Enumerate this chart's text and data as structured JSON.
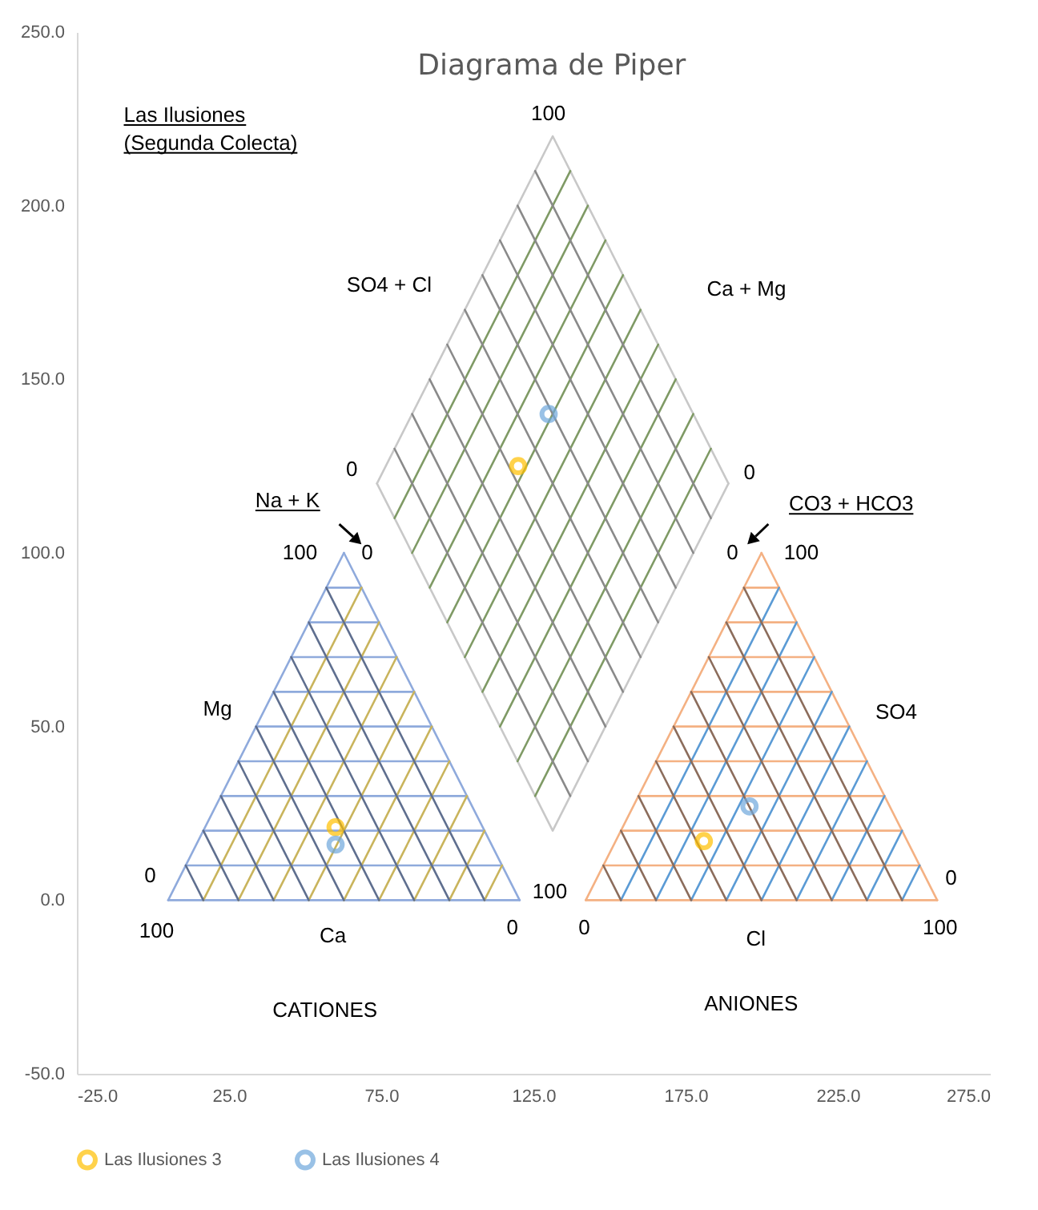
{
  "chart_data": {
    "type": "scatter",
    "title": "Diagrama de Piper",
    "xlim": [
      -25,
      275
    ],
    "xticks": [
      {
        "value": -25,
        "label": "-25.0"
      },
      {
        "value": 25,
        "label": "25.0"
      },
      {
        "value": 75,
        "label": "75.0"
      },
      {
        "value": 125,
        "label": "125.0"
      },
      {
        "value": 175,
        "label": "175.0"
      },
      {
        "value": 225,
        "label": "225.0"
      },
      {
        "value": 275,
        "label": "275.0"
      }
    ],
    "ylim": [
      -50,
      250
    ],
    "yticks": [
      {
        "value": -50,
        "label": "-50.0"
      },
      {
        "value": 0,
        "label": "0.0"
      },
      {
        "value": 50,
        "label": "50.0"
      },
      {
        "value": 100,
        "label": "100.0"
      },
      {
        "value": 150,
        "label": "150.0"
      },
      {
        "value": 200,
        "label": "200.0"
      },
      {
        "value": 250,
        "label": "250.0"
      }
    ],
    "grid": false,
    "legend": "bottom",
    "annotations": [
      "Las Ilusiones",
      "(Segunda Colecta)",
      "100",
      "SO4 + Cl",
      "Ca + Mg",
      "0",
      "0",
      "Na + K",
      "CO3 + HCO3",
      "100",
      "0",
      "0",
      "100",
      "Mg",
      "SO4",
      "0",
      "100",
      "Ca",
      "0",
      "100",
      "0",
      "Cl",
      "100",
      "0",
      "CATIONES",
      "ANIONES"
    ],
    "series": [
      {
        "type": "line",
        "color": "#8faadc",
        "x": [
          5,
          120.47,
          null,
          5,
          62.74,
          null,
          62.74,
          120.47,
          null,
          10.77,
          114.7,
          null,
          16.55,
          108.92,
          null,
          22.32,
          103.15,
          null,
          28.09,
          97.38,
          null,
          33.87,
          91.6,
          null,
          39.64,
          85.83,
          null,
          45.42,
          80.05,
          null,
          51.19,
          74.28,
          null,
          56.96,
          68.51
        ],
        "values": [
          0,
          0,
          null,
          0,
          100,
          null,
          100,
          0,
          null,
          10,
          10,
          null,
          20,
          20,
          null,
          30,
          30,
          null,
          40,
          40,
          null,
          50,
          50,
          null,
          60,
          60,
          null,
          70,
          70,
          null,
          80,
          80,
          null,
          90,
          90
        ]
      },
      {
        "type": "line",
        "color": "#c9b45c",
        "x": [
          16.55,
          68.51,
          null,
          28.09,
          74.28,
          null,
          39.64,
          80.05,
          null,
          51.19,
          85.83,
          null,
          62.74,
          91.6,
          null,
          74.28,
          97.38,
          null,
          85.83,
          103.15,
          null,
          97.38,
          108.92,
          null,
          108.92,
          114.7
        ],
        "values": [
          0,
          90,
          null,
          0,
          80,
          null,
          0,
          70,
          null,
          0,
          60,
          null,
          0,
          50,
          null,
          0,
          40,
          null,
          0,
          30,
          null,
          0,
          20,
          null,
          0,
          10
        ]
      },
      {
        "type": "line",
        "color": "#5f6f8f",
        "x": [
          16.55,
          10.77,
          null,
          28.09,
          16.55,
          null,
          39.64,
          22.32,
          null,
          51.19,
          28.09,
          null,
          62.74,
          33.87,
          null,
          74.28,
          39.64,
          null,
          85.83,
          45.42,
          null,
          97.38,
          51.19,
          null,
          108.92,
          56.96
        ],
        "values": [
          0,
          10,
          null,
          0,
          20,
          null,
          0,
          30,
          null,
          0,
          40,
          null,
          0,
          50,
          null,
          0,
          60,
          null,
          0,
          70,
          null,
          0,
          80,
          null,
          0,
          90
        ]
      },
      {
        "type": "line",
        "color": "#f4b183",
        "x": [
          142.2,
          257.67,
          null,
          142.2,
          199.94,
          null,
          199.94,
          257.67,
          null,
          147.97,
          251.9,
          null,
          153.75,
          246.12,
          null,
          159.52,
          240.35,
          null,
          165.29,
          234.58,
          null,
          171.07,
          228.8,
          null,
          176.84,
          223.03,
          null,
          182.62,
          217.25,
          null,
          188.39,
          211.48,
          null,
          194.16,
          205.71
        ],
        "values": [
          0,
          0,
          null,
          0,
          100,
          null,
          100,
          0,
          null,
          10,
          10,
          null,
          20,
          20,
          null,
          30,
          30,
          null,
          40,
          40,
          null,
          50,
          50,
          null,
          60,
          60,
          null,
          70,
          70,
          null,
          80,
          80,
          null,
          90,
          90
        ]
      },
      {
        "type": "line",
        "color": "#5b9bd5",
        "x": [
          153.75,
          205.71,
          null,
          165.29,
          211.48,
          null,
          176.84,
          217.25,
          null,
          188.39,
          223.03,
          null,
          199.94,
          228.8,
          null,
          211.48,
          234.58,
          null,
          223.03,
          240.35,
          null,
          234.58,
          246.12,
          null,
          246.12,
          251.9
        ],
        "values": [
          0,
          90,
          null,
          0,
          80,
          null,
          0,
          70,
          null,
          0,
          60,
          null,
          0,
          50,
          null,
          0,
          40,
          null,
          0,
          30,
          null,
          0,
          20,
          null,
          0,
          10
        ]
      },
      {
        "type": "line",
        "color": "#8c6d5c",
        "x": [
          153.75,
          147.97,
          null,
          165.29,
          153.75,
          null,
          176.84,
          159.52,
          null,
          188.39,
          165.29,
          null,
          199.94,
          171.07,
          null,
          211.48,
          176.84,
          null,
          223.03,
          182.62,
          null,
          234.58,
          188.39,
          null,
          246.12,
          194.16
        ],
        "values": [
          0,
          10,
          null,
          0,
          20,
          null,
          0,
          30,
          null,
          0,
          40,
          null,
          0,
          50,
          null,
          0,
          60,
          null,
          0,
          70,
          null,
          0,
          80,
          null,
          0,
          90
        ]
      },
      {
        "type": "line",
        "color": "#c8c8c8",
        "x": [
          73.6,
          131.34,
          189.08
        ],
        "values": [
          120,
          20,
          120
        ]
      },
      {
        "type": "line",
        "color": "#c8c8c8",
        "x": [
          73.6,
          131.34,
          189.08
        ],
        "values": [
          120,
          220,
          120
        ]
      },
      {
        "type": "line",
        "color": "#7f9a65",
        "x": [
          125.57,
          183.31,
          null,
          119.79,
          177.53,
          null,
          114.02,
          171.76,
          null,
          108.25,
          165.99,
          null,
          102.47,
          160.21,
          null,
          96.7,
          154.44,
          null,
          90.92,
          148.66,
          null,
          85.15,
          142.89,
          null,
          79.38,
          137.12
        ],
        "values": [
          30,
          130,
          null,
          40,
          140,
          null,
          50,
          150,
          null,
          60,
          160,
          null,
          70,
          170,
          null,
          80,
          180,
          null,
          90,
          190,
          null,
          100,
          200,
          null,
          110,
          210
        ]
      },
      {
        "type": "line",
        "color": "#8a8a8a",
        "x": [
          137.11,
          79.37,
          null,
          142.89,
          85.15,
          null,
          148.66,
          90.92,
          null,
          154.43,
          96.69,
          null,
          160.21,
          102.47,
          null,
          165.98,
          108.24,
          null,
          171.76,
          114.02,
          null,
          177.53,
          119.79,
          null,
          183.31,
          125.57
        ],
        "values": [
          30,
          130,
          null,
          40,
          140,
          null,
          50,
          150,
          null,
          60,
          160,
          null,
          70,
          170,
          null,
          80,
          180,
          null,
          90,
          190,
          null,
          100,
          200,
          null,
          110,
          210
        ]
      },
      {
        "name": "Las Ilusiones 3",
        "marker": "circle",
        "color": "#ffc000",
        "x": [
          60,
          120,
          181
        ],
        "values": [
          21,
          125,
          17
        ]
      },
      {
        "name": "Las Ilusiones 4",
        "marker": "circle",
        "color": "#6fa8dc",
        "x": [
          60,
          130,
          196
        ],
        "values": [
          16,
          140,
          27
        ]
      }
    ]
  }
}
